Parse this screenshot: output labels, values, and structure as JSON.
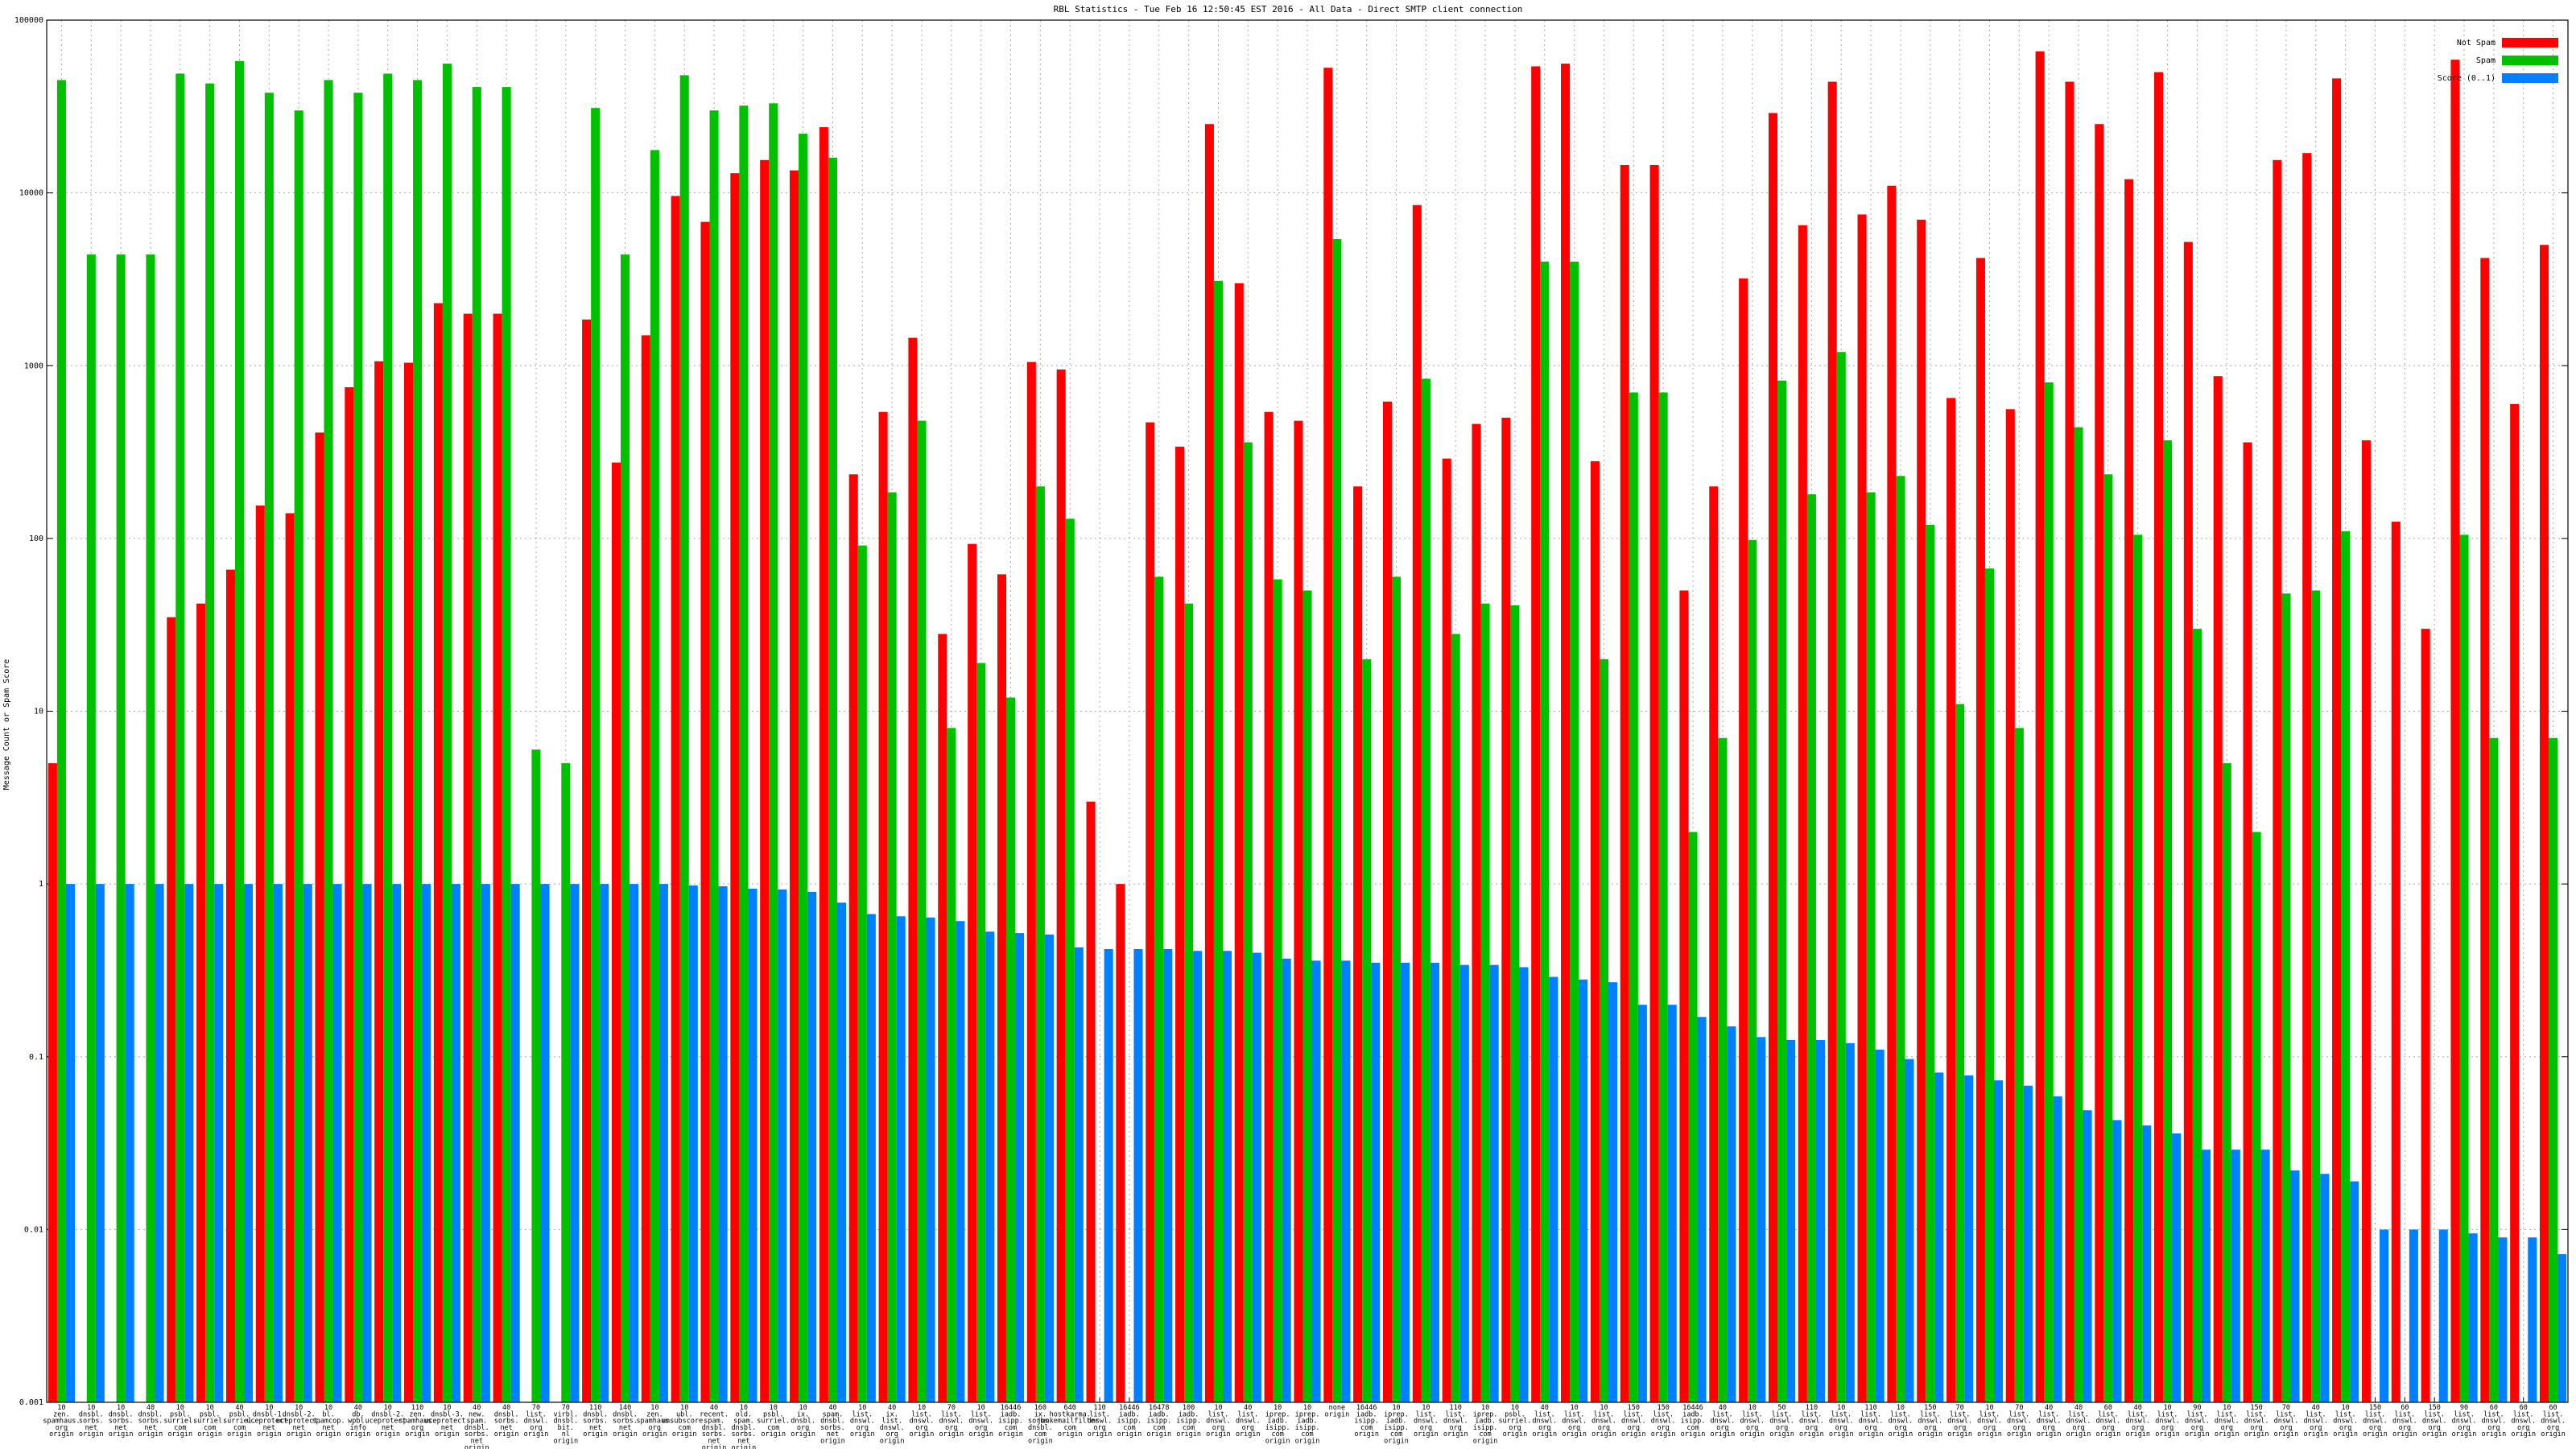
{
  "chart_data": {
    "type": "bar",
    "title": "RBL Statistics - Tue Feb 16 12:50:45 EST 2016 - All Data - Direct SMTP client connection",
    "y_label": "Message Count or Spam Score",
    "log_scale": true,
    "grid": true,
    "legend_position": "top-right",
    "ylim": [
      0.001,
      100000
    ],
    "yticks": [
      0.001,
      0.01,
      0.1,
      1,
      10,
      100,
      1000,
      10000,
      100000
    ],
    "categories": [
      [
        "10",
        "zen.",
        "spamhaus.",
        "org",
        "origin"
      ],
      [
        "10",
        "dnsbl.",
        "sorbs.",
        "net",
        "origin"
      ],
      [
        "10",
        "dnsbl.",
        "sorbs.",
        "net",
        "origin"
      ],
      [
        "40",
        "dnsbl.",
        "sorbs.",
        "net",
        "origin"
      ],
      [
        "10",
        "psbl.",
        "surriel.",
        "com",
        "origin"
      ],
      [
        "10",
        "psbl.",
        "surriel.",
        "com",
        "origin"
      ],
      [
        "40",
        "psbl.",
        "surriel.",
        "com",
        "origin"
      ],
      [
        "10",
        "dnsbl-1.",
        "uceprotect.",
        "net",
        "origin"
      ],
      [
        "10",
        "dnsbl-2.",
        "uceprotect.",
        "net",
        "origin"
      ],
      [
        "10",
        "bl.",
        "spamcop.",
        "net",
        "origin"
      ],
      [
        "40",
        "db.",
        "wpbl.",
        "info",
        "origin"
      ],
      [
        "10",
        "dnsbl-2.",
        "uceprotect.",
        "net",
        "origin"
      ],
      [
        "110",
        "zen.",
        "spamhaus.",
        "org",
        "origin"
      ],
      [
        "10",
        "dnsbl-3.",
        "uceprotect.",
        "net",
        "origin"
      ],
      [
        "40",
        "new.",
        "spam.",
        "dnsbl.",
        "sorbs.",
        "net",
        "origin"
      ],
      [
        "40",
        "dnsbl.",
        "sorbs.",
        "net",
        "origin"
      ],
      [
        "70",
        "list.",
        "dnswl.",
        "org",
        "origin"
      ],
      [
        "70",
        "virbl.",
        "dnsbl.",
        "bit.",
        "nl",
        "origin"
      ],
      [
        "110",
        "dnsbl.",
        "sorbs.",
        "net",
        "origin"
      ],
      [
        "140",
        "dnsbl.",
        "sorbs.",
        "net",
        "origin"
      ],
      [
        "10",
        "zen.",
        "spamhaus.",
        "org",
        "origin"
      ],
      [
        "10",
        "ubl.",
        "unsubscore.",
        "com",
        "origin"
      ],
      [
        "40",
        "recent.",
        "spam.",
        "dnsbl.",
        "sorbs.",
        "net",
        "origin"
      ],
      [
        "10",
        "old.",
        "spam.",
        "dnsbl.",
        "sorbs.",
        "net",
        "origin"
      ],
      [
        "10",
        "psbl.",
        "surriel.",
        "com",
        "origin"
      ],
      [
        "10",
        "ix.",
        "dnsbl.",
        "org",
        "origin"
      ],
      [
        "40",
        "spam.",
        "dnsbl.",
        "sorbs.",
        "net",
        "origin"
      ],
      [
        "10",
        "list.",
        "dnswl.",
        "org",
        "origin"
      ],
      [
        "40",
        "ix.",
        "list.",
        "dnswl.",
        "org",
        "origin"
      ],
      [
        "10",
        "list.",
        "dnswl.",
        "org",
        "origin"
      ],
      [
        "70",
        "list.",
        "dnswl.",
        "org",
        "origin"
      ],
      [
        "10",
        "list.",
        "dnswl.",
        "org",
        "origin"
      ],
      [
        "16446",
        "iadb.",
        "isipp.",
        "com",
        "origin"
      ],
      [
        "160",
        "ix.",
        "sorbs.",
        "dnsbl.",
        "com",
        "origin"
      ],
      [
        "640",
        "hostkarma.",
        "junkemailfilter.",
        "com",
        "origin"
      ],
      [
        "110",
        "list.",
        "dnswl.",
        "org",
        "origin"
      ],
      [
        "16446",
        "iadb.",
        "isipp.",
        "com",
        "origin"
      ],
      [
        "16478",
        "iadb.",
        "isipp.",
        "com",
        "origin"
      ],
      [
        "100",
        "iadb.",
        "isipp.",
        "com",
        "origin"
      ],
      [
        "10",
        "list.",
        "dnswl.",
        "org",
        "origin"
      ],
      [
        "40",
        "list.",
        "dnswl.",
        "org",
        "origin"
      ],
      [
        "10",
        "iprep.",
        "iadb.",
        "isipp.",
        "com",
        "origin"
      ],
      [
        "10",
        "iprep.",
        "iadb.",
        "isipp.",
        "com",
        "origin"
      ],
      [
        "none",
        "origin"
      ],
      [
        "16446",
        "iadb.",
        "isipp.",
        "com",
        "origin"
      ],
      [
        "10",
        "iprep.",
        "iadb.",
        "isipp.",
        "com",
        "origin"
      ],
      [
        "10",
        "list.",
        "dnswl.",
        "org",
        "origin"
      ],
      [
        "110",
        "list.",
        "dnswl.",
        "org",
        "origin"
      ],
      [
        "10",
        "iprep.",
        "iadb.",
        "isipp.",
        "com",
        "origin"
      ],
      [
        "10",
        "psbl.",
        "surriel.",
        "org",
        "origin"
      ],
      [
        "40",
        "list.",
        "dnswl.",
        "org",
        "origin"
      ],
      [
        "10",
        "list.",
        "dnswl.",
        "org",
        "origin"
      ],
      [
        "10",
        "list.",
        "dnswl.",
        "org",
        "origin"
      ],
      [
        "150",
        "list.",
        "dnswl.",
        "org",
        "origin"
      ],
      [
        "150",
        "list.",
        "dnswl.",
        "org",
        "origin"
      ],
      [
        "16446",
        "iadb.",
        "isipp.",
        "com",
        "origin"
      ],
      [
        "40",
        "list.",
        "dnswl.",
        "org",
        "origin"
      ],
      [
        "10",
        "list.",
        "dnswl.",
        "org",
        "origin"
      ],
      [
        "50",
        "list.",
        "dnswl.",
        "org",
        "origin"
      ],
      [
        "110",
        "list.",
        "dnswl.",
        "org",
        "origin"
      ],
      [
        "10",
        "list.",
        "dnswl.",
        "org",
        "origin"
      ],
      [
        "110",
        "list.",
        "dnswl.",
        "org",
        "origin"
      ],
      [
        "10",
        "list.",
        "dnswl.",
        "org",
        "origin"
      ],
      [
        "150",
        "list.",
        "dnswl.",
        "org",
        "origin"
      ],
      [
        "70",
        "list.",
        "dnswl.",
        "org",
        "origin"
      ],
      [
        "10",
        "list.",
        "dnswl.",
        "org",
        "origin"
      ],
      [
        "70",
        "list.",
        "dnswl.",
        "org",
        "origin"
      ],
      [
        "40",
        "list.",
        "dnswl.",
        "org",
        "origin"
      ],
      [
        "40",
        "list.",
        "dnswl.",
        "org",
        "origin"
      ],
      [
        "60",
        "list.",
        "dnswl.",
        "org",
        "origin"
      ],
      [
        "40",
        "list.",
        "dnswl.",
        "org",
        "origin"
      ],
      [
        "10",
        "list.",
        "dnswl.",
        "org",
        "origin"
      ],
      [
        "90",
        "list.",
        "dnswl.",
        "org",
        "origin"
      ],
      [
        "10",
        "list.",
        "dnswl.",
        "org",
        "origin"
      ],
      [
        "150",
        "list.",
        "dnswl.",
        "org",
        "origin"
      ],
      [
        "70",
        "list.",
        "dnswl.",
        "org",
        "origin"
      ],
      [
        "40",
        "list.",
        "dnswl.",
        "org",
        "origin"
      ],
      [
        "10",
        "list.",
        "dnswl.",
        "org",
        "origin"
      ],
      [
        "150",
        "list.",
        "dnswl.",
        "org",
        "origin"
      ],
      [
        "60",
        "list.",
        "dnswl.",
        "org",
        "origin"
      ],
      [
        "150",
        "list.",
        "dnswl.",
        "org",
        "origin"
      ],
      [
        "90",
        "list.",
        "dnswl.",
        "org",
        "origin"
      ],
      [
        "60",
        "list.",
        "dnswl.",
        "org",
        "origin"
      ],
      [
        "60",
        "list.",
        "dnswl.",
        "org",
        "origin"
      ],
      [
        "60",
        "list.",
        "dnswl.",
        "org",
        "origin"
      ]
    ],
    "series": [
      {
        "name": "Not Spam",
        "color": "#ff0000",
        "values": [
          5,
          null,
          null,
          null,
          35,
          42,
          66,
          155,
          140,
          410,
          750,
          1060,
          1040,
          2300,
          2000,
          2000,
          null,
          null,
          1850,
          275,
          1500,
          9600,
          6800,
          13000,
          15500,
          13500,
          24000,
          235,
          540,
          1450,
          28,
          93,
          62,
          1050,
          950,
          3,
          1,
          470,
          340,
          25000,
          3000,
          540,
          480,
          53000,
          200,
          620,
          8500,
          290,
          460,
          500,
          54000,
          56000,
          280,
          14500,
          14500,
          50,
          200,
          3200,
          29000,
          6500,
          44000,
          7500,
          11000,
          7000,
          650,
          4200,
          560,
          66000,
          44000,
          25000,
          12000,
          50000,
          5200,
          870,
          360,
          15500,
          17000,
          46000,
          370,
          125,
          30,
          59000,
          4200,
          600,
          5000
        ]
      },
      {
        "name": "Spam",
        "color": "#00c000",
        "values": [
          45000,
          4400,
          4400,
          4400,
          49000,
          43000,
          58000,
          38000,
          30000,
          45000,
          38000,
          49000,
          45000,
          56000,
          41000,
          41000,
          6,
          5,
          31000,
          4400,
          17700,
          48000,
          30000,
          32000,
          33000,
          22000,
          16000,
          91,
          185,
          480,
          8,
          19,
          12,
          200,
          130,
          null,
          null,
          60,
          42,
          3100,
          360,
          58,
          50,
          5400,
          20,
          60,
          840,
          28,
          42,
          41,
          4000,
          4000,
          20,
          700,
          700,
          2,
          7,
          98,
          820,
          180,
          1200,
          185,
          230,
          120,
          11,
          67,
          8,
          800,
          440,
          235,
          105,
          370,
          30,
          5,
          2,
          48,
          50,
          110,
          null,
          null,
          null,
          105,
          7,
          null,
          7
        ]
      },
      {
        "name": "Score (0..1)",
        "color": "#0080ff",
        "values": [
          1,
          1,
          1,
          1,
          1,
          1,
          1,
          1,
          1,
          1,
          1,
          1,
          1,
          1,
          1,
          1,
          1,
          1,
          1,
          1,
          1,
          0.98,
          0.97,
          0.94,
          0.93,
          0.9,
          0.78,
          0.67,
          0.65,
          0.64,
          0.61,
          0.53,
          0.52,
          0.51,
          0.43,
          0.42,
          0.42,
          0.42,
          0.41,
          0.41,
          0.4,
          0.37,
          0.36,
          0.36,
          0.35,
          0.35,
          0.35,
          0.34,
          0.34,
          0.33,
          0.29,
          0.28,
          0.27,
          0.2,
          0.2,
          0.17,
          0.15,
          0.13,
          0.125,
          0.125,
          0.12,
          0.11,
          0.097,
          0.081,
          0.078,
          0.073,
          0.068,
          0.059,
          0.049,
          0.043,
          0.04,
          0.036,
          0.029,
          0.029,
          0.029,
          0.022,
          0.021,
          0.019,
          0.01,
          0.01,
          0.01,
          0.0095,
          0.009,
          0.009,
          0.0072
        ]
      }
    ]
  }
}
